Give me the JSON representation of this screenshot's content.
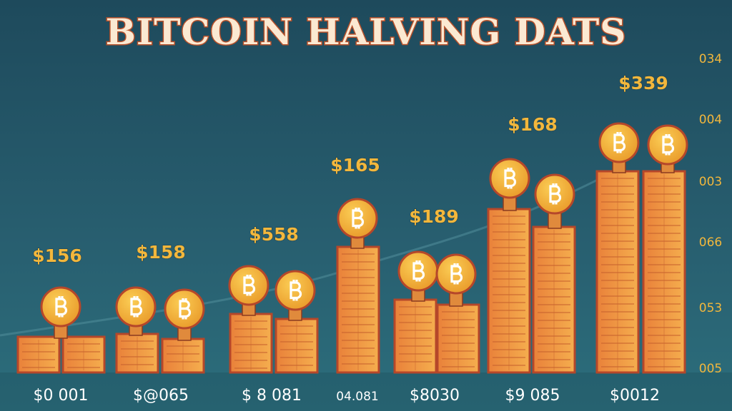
{
  "title": "BITCOIN HALVING DATS",
  "groups": [
    {
      "price": "$156",
      "label": "$0 001"
    },
    {
      "price": "$158",
      "label": "$@065"
    },
    {
      "price": "$558",
      "label": "$ 8 081"
    },
    {
      "price": "$165",
      "label": "04.081"
    },
    {
      "price": "$189",
      "label": "$8030"
    },
    {
      "price": "$168",
      "label": "$9 085"
    },
    {
      "price": "$339",
      "label": "$0012"
    }
  ],
  "right_labels": [
    "034",
    "004",
    "003",
    "066",
    "053",
    "005"
  ]
}
